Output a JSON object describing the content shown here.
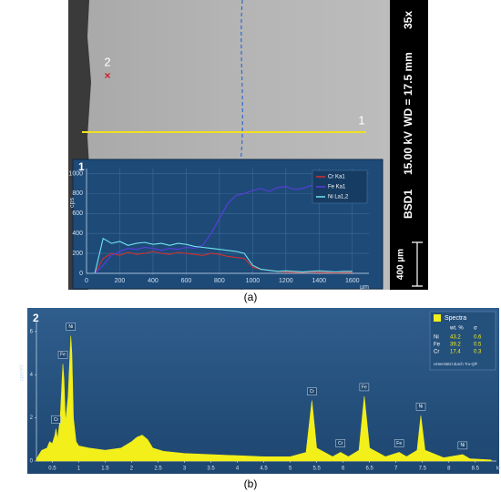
{
  "micrograph": {
    "point_label": "2",
    "line_label": "1",
    "magnification": "35x",
    "working_distance": "WD = 17.5 mm",
    "voltage": "15.00 kV",
    "detector": "BSD1",
    "scale_bar": "400 µm"
  },
  "captions": [
    "(a)",
    "(b)"
  ],
  "chart_data": [
    {
      "type": "line",
      "label": "1",
      "y_label": "cps",
      "x_label": "µm",
      "x": [
        50,
        100,
        150,
        200,
        250,
        300,
        350,
        400,
        450,
        500,
        550,
        600,
        650,
        700,
        750,
        800,
        850,
        900,
        950,
        1000,
        1050,
        1100,
        1150,
        1200,
        1250,
        1300,
        1350,
        1400,
        1450,
        1500,
        1550,
        1600
      ],
      "series": [
        {
          "name": "Cr Ka1",
          "color": "#d0302c",
          "values": [
            0,
            150,
            200,
            180,
            210,
            190,
            200,
            220,
            200,
            190,
            210,
            200,
            190,
            180,
            200,
            190,
            170,
            160,
            150,
            60,
            40,
            30,
            20,
            15,
            10,
            10,
            15,
            10,
            10,
            5,
            10,
            10
          ]
        },
        {
          "name": "Fe Ka1",
          "color": "#5a3de0",
          "values": [
            0,
            80,
            180,
            220,
            250,
            240,
            260,
            250,
            230,
            250,
            240,
            260,
            250,
            280,
            400,
            550,
            700,
            780,
            800,
            830,
            850,
            820,
            860,
            870,
            840,
            850,
            880,
            860,
            850,
            870,
            880,
            860
          ]
        },
        {
          "name": "Ni La1,2",
          "color": "#6fe3f0",
          "values": [
            0,
            350,
            300,
            320,
            280,
            300,
            310,
            290,
            300,
            280,
            300,
            290,
            270,
            260,
            250,
            240,
            230,
            220,
            200,
            80,
            40,
            30,
            20,
            25,
            20,
            15,
            20,
            25,
            20,
            15,
            20,
            20
          ]
        }
      ],
      "xlim": [
        0,
        1700
      ],
      "xticks": [
        0,
        200,
        400,
        600,
        800,
        1000,
        1200,
        1400,
        1600
      ],
      "ylim": [
        0,
        1050
      ],
      "yticks": [
        0,
        200,
        400,
        600,
        800,
        1000
      ],
      "grid": true,
      "legend": "top-right"
    },
    {
      "type": "area",
      "label": "2",
      "y_label": "cps/eV",
      "x_label": "keV",
      "color": "#f2ef1a",
      "x": [
        0.2,
        0.3,
        0.4,
        0.45,
        0.5,
        0.55,
        0.57,
        0.6,
        0.65,
        0.7,
        0.72,
        0.75,
        0.8,
        0.85,
        0.87,
        0.9,
        0.95,
        1.0,
        1.2,
        1.5,
        1.8,
        2.0,
        2.1,
        2.2,
        2.3,
        2.4,
        2.6,
        3.0,
        3.5,
        4.0,
        4.5,
        5.0,
        5.3,
        5.41,
        5.5,
        5.8,
        5.95,
        6.1,
        6.3,
        6.4,
        6.5,
        6.8,
        7.06,
        7.2,
        7.4,
        7.47,
        7.55,
        7.9,
        8.26,
        8.4,
        8.8
      ],
      "values": [
        0.1,
        0.5,
        0.6,
        0.9,
        0.8,
        1.2,
        1.5,
        1.0,
        2.0,
        4.5,
        3.8,
        1.8,
        3.0,
        5.8,
        5.0,
        2.0,
        0.9,
        0.7,
        0.6,
        0.5,
        0.6,
        0.9,
        1.1,
        1.2,
        1.0,
        0.6,
        0.45,
        0.35,
        0.3,
        0.25,
        0.2,
        0.2,
        0.4,
        2.8,
        0.6,
        0.2,
        0.4,
        0.2,
        0.5,
        3.0,
        0.6,
        0.2,
        0.4,
        0.2,
        0.5,
        2.1,
        0.5,
        0.15,
        0.3,
        0.1,
        0.05
      ],
      "peaks": {
        "labels": [
          "Cr",
          "Fe",
          "Ni",
          "Cr",
          "Cr",
          "Fe",
          "Fe",
          "Ni",
          "Ni"
        ],
        "x": [
          0.57,
          0.7,
          0.85,
          5.41,
          5.95,
          6.4,
          7.06,
          7.47,
          8.26
        ],
        "values": [
          1.5,
          4.5,
          5.8,
          2.8,
          0.4,
          3.0,
          0.4,
          2.1,
          0.3
        ]
      },
      "xlim": [
        0.2,
        8.9
      ],
      "xticks": [
        0.5,
        1,
        1.5,
        2,
        2.5,
        3,
        3.5,
        4,
        4.5,
        5,
        5.5,
        6,
        6.5,
        7,
        7.5,
        8,
        8.5
      ],
      "ylim": [
        0,
        6.5
      ],
      "yticks": [
        0,
        2,
        4,
        6
      ],
      "table": {
        "title": "Spectra",
        "header": [
          "wt. %",
          "σ"
        ],
        "rows": [
          [
            "Ni",
            43.2,
            0.6
          ],
          [
            "Fe",
            39.2,
            0.5
          ],
          [
            "Cr",
            17.4,
            0.3
          ]
        ],
        "note": "Unterstützt durch Tru-Q®"
      }
    }
  ]
}
